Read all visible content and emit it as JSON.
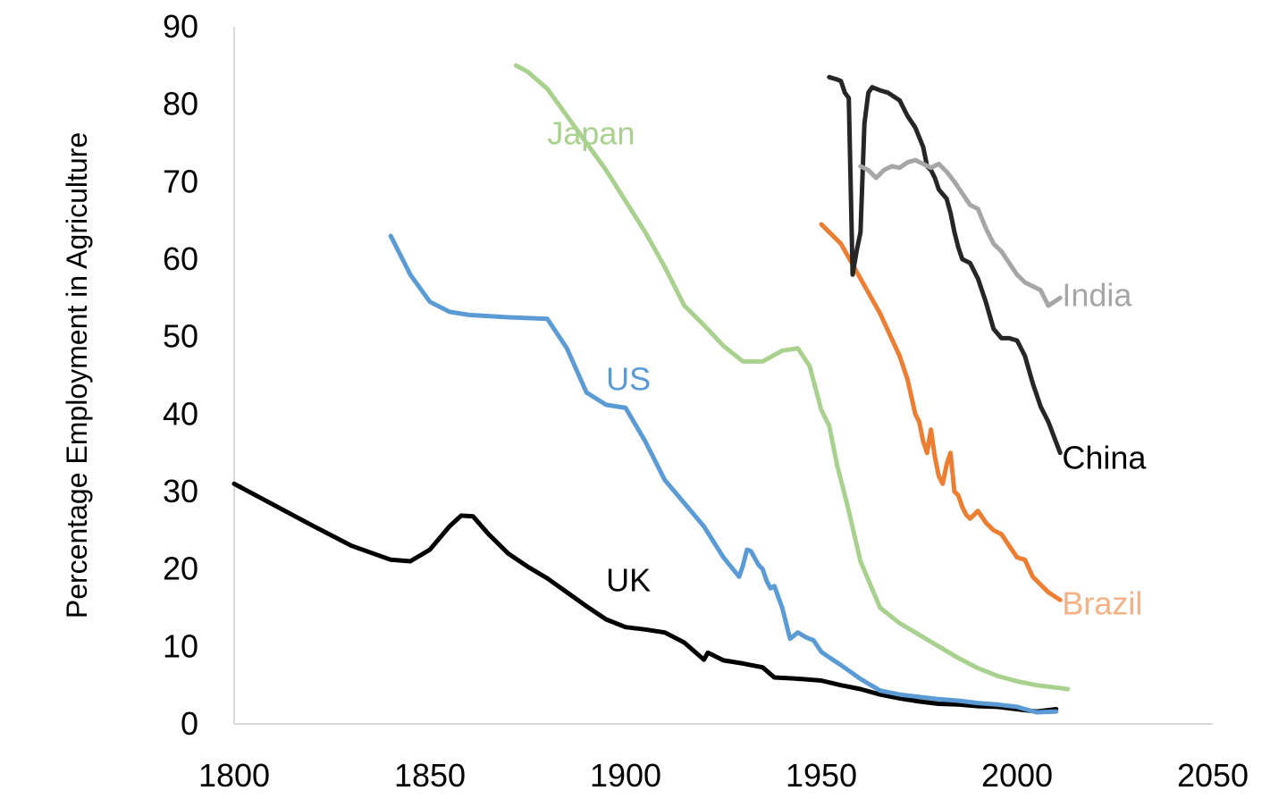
{
  "chart_data": {
    "type": "line",
    "title": "",
    "xlabel": "",
    "ylabel": "Percentage Employment in Agriculture",
    "xlim": [
      1800,
      2050
    ],
    "ylim": [
      0,
      90
    ],
    "xticks": [
      "1800",
      "1850",
      "1900",
      "1950",
      "2000",
      "2050"
    ],
    "yticks": [
      "0",
      "10",
      "20",
      "30",
      "40",
      "50",
      "60",
      "70",
      "80",
      "90"
    ],
    "grid": false,
    "legend": "none",
    "series": [
      {
        "name": "UK",
        "color": "#000000",
        "label_color": "#000000",
        "x": [
          1800,
          1810,
          1820,
          1830,
          1840,
          1845,
          1850,
          1855,
          1858,
          1861,
          1865,
          1870,
          1875,
          1880,
          1885,
          1890,
          1895,
          1900,
          1905,
          1910,
          1915,
          1920,
          1921,
          1925,
          1930,
          1935,
          1938,
          1945,
          1950,
          1955,
          1960,
          1965,
          1970,
          1975,
          1980,
          1985,
          1990,
          1995,
          2000,
          2005,
          2010
        ],
        "values": [
          31,
          28.3,
          25.6,
          23,
          21.2,
          21,
          22.5,
          25.5,
          26.9,
          26.8,
          24.5,
          22,
          20.3,
          18.8,
          17,
          15.2,
          13.5,
          12.5,
          12.2,
          11.8,
          10.5,
          8.3,
          9.2,
          8.2,
          7.8,
          7.3,
          6,
          5.8,
          5.6,
          5.0,
          4.5,
          3.8,
          3.3,
          2.9,
          2.6,
          2.5,
          2.3,
          2.2,
          1.9,
          1.6,
          1.9
        ]
      },
      {
        "name": "US",
        "color": "#5b9bd5",
        "label_color": "#5b9bd5",
        "x": [
          1840,
          1845,
          1850,
          1855,
          1860,
          1870,
          1880,
          1885,
          1890,
          1895,
          1900,
          1905,
          1910,
          1915,
          1920,
          1925,
          1929,
          1930,
          1931,
          1932,
          1934,
          1935,
          1936,
          1937,
          1938,
          1940,
          1942,
          1944,
          1945,
          1946,
          1948,
          1950,
          1952,
          1955,
          1960,
          1965,
          1970,
          1975,
          1980,
          1985,
          1990,
          1995,
          2000,
          2005,
          2010
        ],
        "values": [
          63,
          58,
          54.5,
          53.2,
          52.8,
          52.5,
          52.3,
          48.5,
          42.8,
          41.2,
          40.8,
          36.5,
          31.5,
          28.5,
          25.5,
          21.5,
          19,
          20.5,
          22.5,
          22.3,
          20.5,
          20,
          18.5,
          17.5,
          17.8,
          15,
          11,
          11.8,
          11.5,
          11.2,
          10.8,
          9.3,
          8.6,
          7.6,
          5.8,
          4.3,
          3.8,
          3.5,
          3.2,
          3.0,
          2.7,
          2.5,
          2.2,
          1.5,
          1.6
        ]
      },
      {
        "name": "Japan",
        "color": "#a9d18e",
        "label_color": "#a9d18e",
        "x": [
          1872,
          1875,
          1880,
          1885,
          1890,
          1895,
          1900,
          1905,
          1910,
          1915,
          1920,
          1925,
          1930,
          1935,
          1940,
          1944,
          1947,
          1950,
          1952,
          1954,
          1955,
          1957,
          1960,
          1965,
          1970,
          1975,
          1980,
          1985,
          1990,
          1995,
          2000,
          2005,
          2013
        ],
        "values": [
          85,
          84.2,
          82,
          78.5,
          75,
          71.5,
          67.5,
          63.5,
          59,
          54,
          51.5,
          48.8,
          46.8,
          46.8,
          48.2,
          48.5,
          46.2,
          40.5,
          38.5,
          33.5,
          31.5,
          27.5,
          21,
          15,
          13,
          11.5,
          10,
          8.5,
          7.2,
          6.2,
          5.5,
          5.0,
          4.5
        ]
      },
      {
        "name": "Brazil",
        "color": "#ed7d31",
        "label_color": "#f4b183",
        "x": [
          1950,
          1955,
          1960,
          1965,
          1970,
          1972,
          1974,
          1975,
          1976,
          1977,
          1978,
          1979,
          1980,
          1981,
          1982,
          1983,
          1984,
          1985,
          1986,
          1987,
          1988,
          1990,
          1992,
          1994,
          1996,
          1998,
          2000,
          2002,
          2004,
          2006,
          2008,
          2011
        ],
        "values": [
          64.5,
          62,
          57.5,
          53,
          47.5,
          44.5,
          40,
          39,
          36.5,
          35,
          38,
          34.5,
          32,
          31,
          33.5,
          35,
          30,
          29.5,
          28,
          27,
          26.5,
          27.5,
          26,
          25,
          24.5,
          23,
          21.5,
          21.2,
          19,
          18,
          17,
          16
        ]
      },
      {
        "name": "China",
        "color": "#262626",
        "label_color": "#000000",
        "x": [
          1952,
          1954,
          1955,
          1956,
          1957,
          1958,
          1959,
          1960,
          1961,
          1962,
          1963,
          1965,
          1967,
          1970,
          1972,
          1974,
          1976,
          1977,
          1978,
          1979,
          1980,
          1982,
          1983,
          1984,
          1985,
          1986,
          1988,
          1990,
          1992,
          1994,
          1996,
          1998,
          2000,
          2002,
          2004,
          2006,
          2008,
          2011
        ],
        "values": [
          83.5,
          83.2,
          83,
          81.5,
          80.8,
          58,
          61,
          63.5,
          77.5,
          81.5,
          82.2,
          81.8,
          81.5,
          80.5,
          78.5,
          77,
          74.5,
          72,
          71.5,
          70.5,
          69,
          67.8,
          66,
          63.5,
          61.5,
          60,
          59.5,
          57.5,
          54.5,
          51,
          49.8,
          49.8,
          49.5,
          47.5,
          44,
          41,
          39,
          35
        ]
      },
      {
        "name": "India",
        "color": "#a6a6a6",
        "label_color": "#a6a6a6",
        "x": [
          1960,
          1962,
          1964,
          1966,
          1968,
          1970,
          1972,
          1974,
          1976,
          1978,
          1980,
          1982,
          1984,
          1986,
          1988,
          1990,
          1992,
          1994,
          1996,
          1998,
          2000,
          2002,
          2004,
          2006,
          2008,
          2011
        ],
        "values": [
          72,
          71.5,
          70.5,
          71.5,
          72,
          71.8,
          72.5,
          72.8,
          72.3,
          71.8,
          72.3,
          71.3,
          70,
          68.5,
          67,
          66.5,
          64,
          62,
          61,
          59.5,
          58,
          57,
          56.5,
          56,
          54,
          55
        ]
      }
    ],
    "annotations": [
      {
        "text": "UK",
        "series": "UK",
        "x": 1895,
        "y": 18.5
      },
      {
        "text": "US",
        "series": "US",
        "x": 1895,
        "y": 44.5
      },
      {
        "text": "Japan",
        "series": "Japan",
        "x": 1880,
        "y": 76.2
      },
      {
        "text": "Brazil",
        "series": "Brazil",
        "x": 2011.5,
        "y": 15.5
      },
      {
        "text": "China",
        "series": "China",
        "x": 2011.5,
        "y": 34.3
      },
      {
        "text": "India",
        "series": "India",
        "x": 2011.5,
        "y": 55.3
      }
    ]
  }
}
